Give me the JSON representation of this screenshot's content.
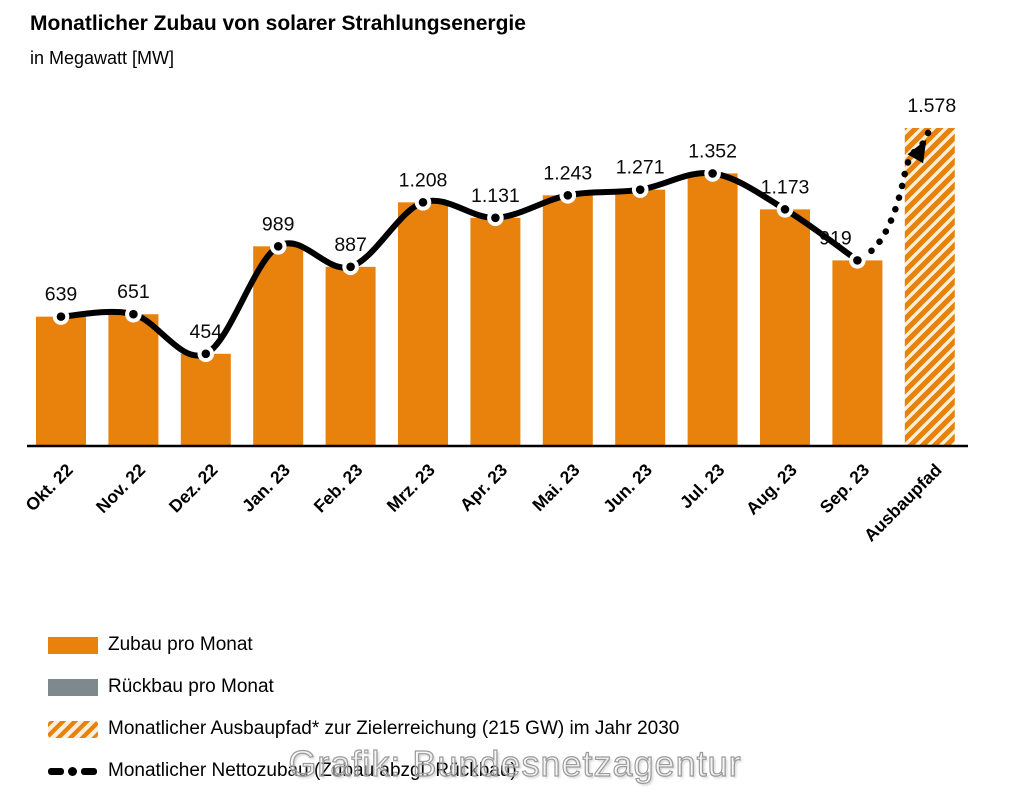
{
  "header": {
    "title": "Monatlicher Zubau von solarer Strahlungsenergie",
    "subtitle": "in Megawatt [MW]"
  },
  "watermark": "Grafik: Bundesnetzagentur",
  "colors": {
    "bar_orange": "#E8820D",
    "hatch_background": "#FAEFDD",
    "ruckbau_gray": "#7E898E",
    "net_line_black": "#000000"
  },
  "legend": {
    "items": [
      {
        "swatch": "orange-solid",
        "label": "Zubau pro Monat"
      },
      {
        "swatch": "gray-solid",
        "label": "Rückbau pro Monat"
      },
      {
        "swatch": "orange-hatched",
        "label": "Monatlicher Ausbaupfad* zur Zielerreichung (215 GW) im Jahr 2030"
      },
      {
        "swatch": "black-dash-dot-line",
        "label": "Monatlicher Nettozubau (Zubau abzgl. Rückbau)"
      }
    ]
  },
  "chart_data": {
    "type": "bar",
    "title": "Monatlicher Zubau von solarer Strahlungsenergie",
    "ylabel": "MW",
    "categories": [
      "Okt. 22",
      "Nov. 22",
      "Dez. 22",
      "Jan. 23",
      "Feb. 23",
      "Mrz. 23",
      "Apr. 23",
      "Mai. 23",
      "Jun. 23",
      "Jul. 23",
      "Aug. 23",
      "Sep. 23",
      "Ausbaupfad"
    ],
    "values": [
      639,
      651,
      454,
      989,
      887,
      1208,
      1131,
      1243,
      1271,
      1352,
      1173,
      919,
      1578
    ],
    "value_labels": [
      "639",
      "651",
      "454",
      "989",
      "887",
      "1.208",
      "1.131",
      "1.243",
      "1.271",
      "1.352",
      "1.173",
      "919",
      "1.578"
    ],
    "bar_styles": [
      "solid",
      "solid",
      "solid",
      "solid",
      "solid",
      "solid",
      "solid",
      "solid",
      "solid",
      "solid",
      "solid",
      "solid",
      "hatched"
    ],
    "line_series": {
      "name": "Monatlicher Nettozubau (Zubau abzgl. Rückbau)",
      "values": [
        639,
        651,
        454,
        989,
        887,
        1208,
        1131,
        1243,
        1271,
        1352,
        1173,
        919
      ],
      "projection": {
        "to_category": "Ausbaupfad",
        "to_value": 1578,
        "style": "dotted-arrow"
      }
    },
    "ylim": [
      0,
      1700
    ],
    "grid": false,
    "y_axis_visible": false,
    "legend_position": "bottom-left"
  }
}
